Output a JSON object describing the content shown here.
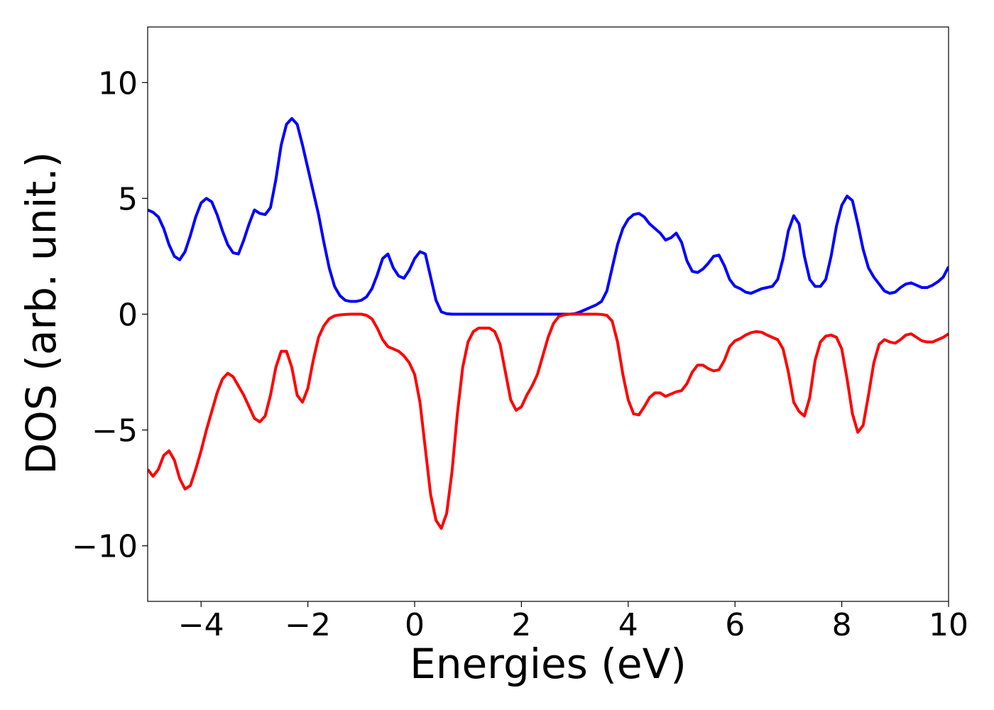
{
  "chart_data": {
    "type": "line",
    "xlabel": "Energies (eV)",
    "ylabel": "DOS (arb. unit.)",
    "xlim": [
      -5,
      10
    ],
    "ylim": [
      -12.4,
      12.4
    ],
    "xticks": [
      {
        "value": -4,
        "label": "−4"
      },
      {
        "value": -2,
        "label": "−2"
      },
      0,
      2,
      4,
      6,
      8,
      10
    ],
    "yticks": [
      {
        "value": -10,
        "label": "−10"
      },
      {
        "value": -5,
        "label": "−5"
      },
      0,
      5,
      10
    ],
    "x": [
      -5,
      -4.9,
      -4.8,
      -4.7,
      -4.6,
      -4.5,
      -4.4,
      -4.3,
      -4.2,
      -4.1,
      -4,
      -3.9,
      -3.8,
      -3.7,
      -3.6,
      -3.5,
      -3.4,
      -3.3,
      -3.2,
      -3.1,
      -3,
      -2.9,
      -2.8,
      -2.7,
      -2.6,
      -2.5,
      -2.4,
      -2.3,
      -2.2,
      -2.1,
      -2,
      -1.9,
      -1.8,
      -1.7,
      -1.6,
      -1.5,
      -1.4,
      -1.3,
      -1.2,
      -1.1,
      -1,
      -0.9,
      -0.8,
      -0.7,
      -0.6,
      -0.5,
      -0.4,
      -0.3,
      -0.2,
      -0.1,
      0,
      0.1,
      0.2,
      0.3,
      0.4,
      0.5,
      0.6,
      0.7,
      0.8,
      0.9,
      1,
      1.1,
      1.2,
      1.3,
      1.4,
      1.5,
      1.6,
      1.7,
      1.8,
      1.9,
      2,
      2.1,
      2.2,
      2.3,
      2.4,
      2.5,
      2.6,
      2.7,
      2.8,
      2.9,
      3,
      3.1,
      3.2,
      3.3,
      3.4,
      3.5,
      3.6,
      3.7,
      3.8,
      3.9,
      4,
      4.1,
      4.2,
      4.3,
      4.4,
      4.5,
      4.6,
      4.7,
      4.8,
      4.9,
      5,
      5.1,
      5.2,
      5.3,
      5.4,
      5.5,
      5.6,
      5.7,
      5.8,
      5.9,
      6,
      6.1,
      6.2,
      6.3,
      6.4,
      6.5,
      6.6,
      6.7,
      6.8,
      6.9,
      7,
      7.1,
      7.2,
      7.3,
      7.4,
      7.5,
      7.6,
      7.7,
      7.8,
      7.9,
      8,
      8.1,
      8.2,
      8.3,
      8.4,
      8.5,
      8.6,
      8.7,
      8.8,
      8.9,
      9,
      9.1,
      9.2,
      9.3,
      9.4,
      9.5,
      9.6,
      9.7,
      9.8,
      9.9,
      10
    ],
    "series": [
      {
        "color": "#0000ff",
        "values": [
          4.5,
          4.4,
          4.2,
          3.7,
          3.0,
          2.5,
          2.35,
          2.7,
          3.4,
          4.2,
          4.8,
          5.0,
          4.85,
          4.3,
          3.6,
          3.0,
          2.65,
          2.6,
          3.2,
          3.9,
          4.5,
          4.35,
          4.3,
          4.6,
          5.8,
          7.3,
          8.2,
          8.45,
          8.2,
          7.3,
          6.3,
          5.3,
          4.3,
          3.1,
          2.0,
          1.2,
          0.8,
          0.6,
          0.55,
          0.55,
          0.6,
          0.75,
          1.1,
          1.7,
          2.4,
          2.6,
          2.0,
          1.65,
          1.55,
          1.9,
          2.4,
          2.7,
          2.6,
          1.6,
          0.6,
          0.1,
          0.02,
          0,
          0,
          0,
          0,
          0,
          0,
          0,
          0,
          0,
          0,
          0,
          0,
          0,
          0,
          0,
          0,
          0,
          0,
          0,
          0,
          0,
          0,
          0,
          0.02,
          0.1,
          0.2,
          0.3,
          0.4,
          0.55,
          1.0,
          2.0,
          3.0,
          3.7,
          4.1,
          4.3,
          4.35,
          4.2,
          3.9,
          3.7,
          3.5,
          3.2,
          3.3,
          3.5,
          3.1,
          2.3,
          1.85,
          1.8,
          1.95,
          2.2,
          2.5,
          2.55,
          2.1,
          1.5,
          1.2,
          1.1,
          0.95,
          0.9,
          1.0,
          1.1,
          1.15,
          1.2,
          1.5,
          2.4,
          3.6,
          4.25,
          3.9,
          2.5,
          1.5,
          1.2,
          1.2,
          1.5,
          2.5,
          3.8,
          4.7,
          5.1,
          4.9,
          3.9,
          2.8,
          2.0,
          1.6,
          1.3,
          1.0,
          0.9,
          0.95,
          1.15,
          1.3,
          1.35,
          1.25,
          1.15,
          1.15,
          1.25,
          1.4,
          1.6,
          2.05
        ]
      },
      {
        "color": "#ff0000",
        "values": [
          -6.7,
          -7.0,
          -6.7,
          -6.1,
          -5.9,
          -6.3,
          -7.1,
          -7.55,
          -7.4,
          -6.7,
          -5.9,
          -5.0,
          -4.2,
          -3.4,
          -2.8,
          -2.55,
          -2.7,
          -3.1,
          -3.5,
          -4.0,
          -4.5,
          -4.65,
          -4.4,
          -3.5,
          -2.3,
          -1.6,
          -1.6,
          -2.3,
          -3.5,
          -3.8,
          -3.2,
          -2.0,
          -1.0,
          -0.5,
          -0.2,
          -0.07,
          -0.03,
          -0.01,
          0,
          0,
          0,
          -0.05,
          -0.2,
          -0.6,
          -1.1,
          -1.4,
          -1.5,
          -1.6,
          -1.8,
          -2.1,
          -2.6,
          -3.8,
          -5.8,
          -7.8,
          -8.9,
          -9.25,
          -8.6,
          -6.8,
          -4.3,
          -2.3,
          -1.2,
          -0.75,
          -0.6,
          -0.6,
          -0.6,
          -0.75,
          -1.3,
          -2.5,
          -3.7,
          -4.15,
          -4.0,
          -3.5,
          -3.1,
          -2.6,
          -1.8,
          -1.0,
          -0.4,
          -0.1,
          -0.03,
          0,
          0,
          0,
          0,
          0,
          0,
          -0.01,
          -0.05,
          -0.3,
          -1.2,
          -2.6,
          -3.7,
          -4.3,
          -4.35,
          -4.0,
          -3.6,
          -3.4,
          -3.4,
          -3.55,
          -3.45,
          -3.35,
          -3.3,
          -3.0,
          -2.5,
          -2.2,
          -2.2,
          -2.35,
          -2.45,
          -2.4,
          -2.0,
          -1.4,
          -1.15,
          -1.05,
          -0.9,
          -0.8,
          -0.75,
          -0.78,
          -0.9,
          -1.0,
          -1.1,
          -1.5,
          -2.5,
          -3.8,
          -4.2,
          -4.4,
          -3.6,
          -2.0,
          -1.2,
          -0.95,
          -0.9,
          -1.0,
          -1.5,
          -2.8,
          -4.3,
          -5.1,
          -4.8,
          -3.5,
          -2.1,
          -1.3,
          -1.1,
          -1.2,
          -1.25,
          -1.1,
          -0.9,
          -0.85,
          -1.0,
          -1.15,
          -1.2,
          -1.2,
          -1.1,
          -1.0,
          -0.85
        ]
      }
    ]
  }
}
